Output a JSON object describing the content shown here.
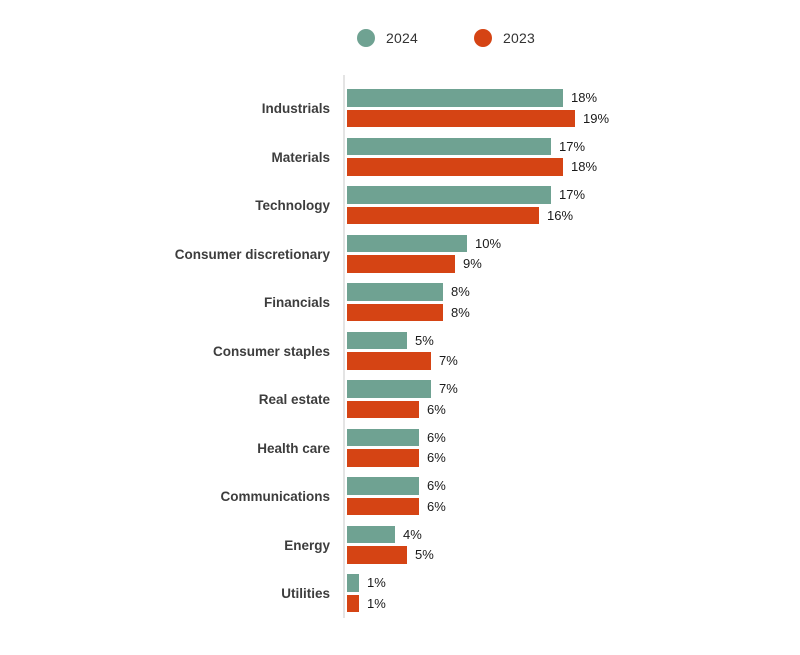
{
  "legend": {
    "items": [
      {
        "label": "2024",
        "color": "#6fa292"
      },
      {
        "label": "2023",
        "color": "#d54414"
      }
    ]
  },
  "chart_data": {
    "type": "bar",
    "orientation": "horizontal",
    "title": "",
    "categories": [
      "Industrials",
      "Materials",
      "Technology",
      "Consumer discretionary",
      "Financials",
      "Consumer staples",
      "Real estate",
      "Health care",
      "Communications",
      "Energy",
      "Utilities"
    ],
    "series": [
      {
        "name": "2024",
        "color": "#6fa292",
        "values": [
          18,
          17,
          17,
          10,
          8,
          5,
          7,
          6,
          6,
          4,
          1
        ]
      },
      {
        "name": "2023",
        "color": "#d54414",
        "values": [
          19,
          18,
          16,
          9,
          8,
          7,
          6,
          6,
          6,
          5,
          1
        ]
      }
    ],
    "value_suffix": "%",
    "value_labels": true,
    "xlim": [
      0,
      19
    ],
    "grid": false,
    "legend_position": "top"
  },
  "styles": {
    "bar_color_2024": "#6fa292",
    "bar_color_2023": "#d54414",
    "category_label_color": "#3d3d3d",
    "value_label_color": "#1a1a1a",
    "axis_line_color": "#e4e4e4",
    "background": "#ffffff"
  }
}
